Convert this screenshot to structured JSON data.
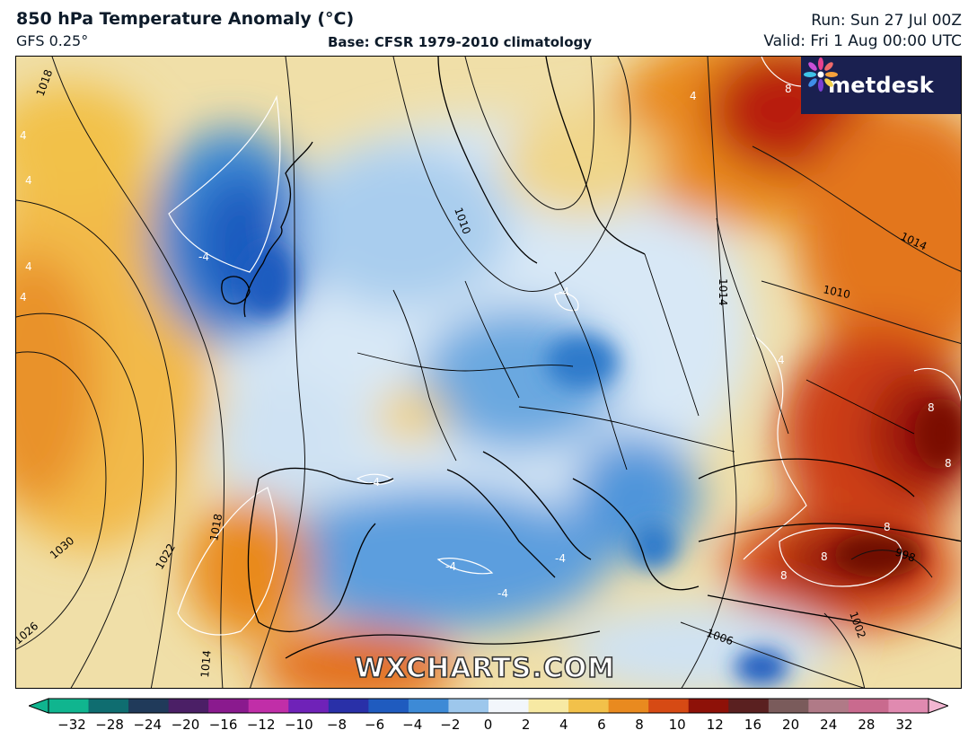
{
  "header": {
    "title": "850 hPa Temperature Anomaly (°C)",
    "model": "GFS 0.25°",
    "base": "Base: CFSR 1979-2010 climatology",
    "run": "Run: Sun 27 Jul 00Z",
    "valid": "Valid: Fri 1 Aug 00:00 UTC"
  },
  "branding": {
    "logo_text": "metdesk",
    "logo_background": "#1a2050",
    "watermark": "WXCHARTS.COM"
  },
  "map": {
    "isobar_labels": [
      "1018",
      "1030",
      "1022",
      "1026",
      "1014",
      "1018",
      "1010",
      "1014",
      "1014",
      "1010",
      "1006",
      "1002",
      "998"
    ],
    "anomaly_labels": [
      "4",
      "4",
      "4",
      "4",
      "-4",
      "-4",
      "-4",
      "-4",
      "-4",
      "-4",
      "8",
      "8",
      "8",
      "8",
      "8",
      "4",
      "4",
      "8"
    ]
  },
  "colorbar": {
    "ticks": [
      "−32",
      "−28",
      "−24",
      "−20",
      "−16",
      "−12",
      "−10",
      "−8",
      "−6",
      "−4",
      "−2",
      "0",
      "2",
      "4",
      "6",
      "8",
      "10",
      "12",
      "16",
      "20",
      "24",
      "28",
      "32"
    ],
    "colors": [
      "#10b58f",
      "#0f6d70",
      "#203a5a",
      "#4b1f66",
      "#8a1a8e",
      "#c12ea8",
      "#6f22b8",
      "#2930a8",
      "#1f5bbf",
      "#3d8ad6",
      "#9dc7ec",
      "#f2f6fb",
      "#f7e9a3",
      "#f2c14a",
      "#e98a1f",
      "#d64a14",
      "#8e1108",
      "#5a2020",
      "#7a5b5b",
      "#b07a87",
      "#c96a8e",
      "#e08ab0",
      "#f3b6d2"
    ]
  }
}
